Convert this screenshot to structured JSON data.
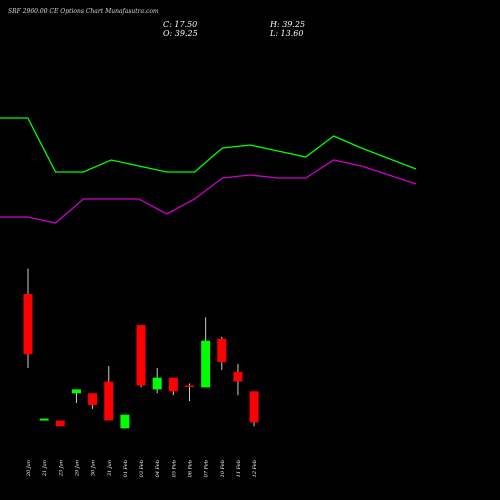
{
  "header": {
    "title": "SRF 2960.00 CE Options Chart Munafasutra.com",
    "close": "C: 17.50",
    "open": "O: 39.25",
    "high": "H: 39.25",
    "low": "L: 13.60"
  },
  "colors": {
    "background": "#000000",
    "up": "#00ff00",
    "down": "#ff0000",
    "line_upper": "#00ff00",
    "line_lower": "#cc00cc",
    "text": "#ffffff"
  },
  "chart_data": {
    "type": "candlestick",
    "categories": [
      "20 Jan",
      "21 Jan",
      "23 Jan",
      "29 Jan",
      "30 Jan",
      "31 Jan",
      "01 Feb",
      "03 Feb",
      "04 Feb",
      "05 Feb",
      "06 Feb",
      "07 Feb",
      "10 Feb",
      "11 Feb",
      "12 Feb"
    ],
    "candles": [
      {
        "open": 180,
        "high": 193,
        "low": 142,
        "close": 149,
        "color": "red"
      },
      {
        "open": 116,
        "high": 116,
        "low": 115,
        "close": 115,
        "color": "green"
      },
      {
        "open": 115,
        "high": 115,
        "low": 112,
        "close": 112,
        "color": "red"
      },
      {
        "open": 131,
        "high": 131,
        "low": 124,
        "close": 129,
        "color": "green"
      },
      {
        "open": 129,
        "high": 129,
        "low": 121,
        "close": 123,
        "color": "red"
      },
      {
        "open": 135,
        "high": 143,
        "low": 115,
        "close": 115,
        "color": "red"
      },
      {
        "open": 111,
        "high": 118,
        "low": 111,
        "close": 118,
        "color": "green"
      },
      {
        "open": 164,
        "high": 164,
        "low": 132,
        "close": 133,
        "color": "red"
      },
      {
        "open": 131,
        "high": 142,
        "low": 129,
        "close": 137,
        "color": "green"
      },
      {
        "open": 137,
        "high": 137,
        "low": 128,
        "close": 130,
        "color": "red"
      },
      {
        "open": 133,
        "high": 134,
        "low": 125,
        "close": 133,
        "color": "red"
      },
      {
        "open": 132,
        "high": 168,
        "low": 132,
        "close": 156,
        "color": "green"
      },
      {
        "open": 157,
        "high": 158,
        "low": 141,
        "close": 145,
        "color": "red"
      },
      {
        "open": 140,
        "high": 144,
        "low": 128,
        "close": 135,
        "color": "red"
      },
      {
        "open": 130,
        "high": 130,
        "low": 112,
        "close": 114,
        "color": "red"
      }
    ],
    "lines": [
      {
        "color": "#00ff00",
        "values": [
          74,
          74,
          56,
          56,
          60,
          58,
          56,
          56,
          64,
          65,
          63,
          61,
          68,
          64,
          57
        ]
      },
      {
        "color": "#cc00cc",
        "values": [
          41,
          41,
          39,
          47,
          47,
          47,
          42,
          47,
          54,
          55,
          54,
          54,
          60,
          58,
          52
        ]
      }
    ]
  }
}
